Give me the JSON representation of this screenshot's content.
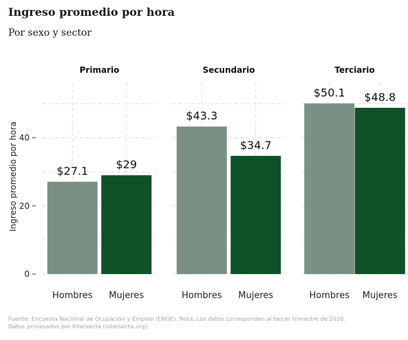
{
  "header": {
    "title": "Ingreso promedio por hora",
    "subtitle": "Por sexo y sector"
  },
  "caption": {
    "line1": "Fuente: Encuesta Nacional de Ocupación y Empleo (ENOE). Nota: Los datos corresponden al tercer trimestre de 2020.",
    "line2": "Datos procesados por Intersecta (intersecta.org)."
  },
  "colors": {
    "hombres": "#7b9084",
    "mujeres": "#0f5127",
    "grid": "#dcdcdc"
  },
  "chart_data": {
    "type": "bar",
    "ylabel": "Ingreso promedio por hora",
    "ylim": [
      0,
      52
    ],
    "yticks": [
      0,
      20,
      40
    ],
    "grid": true,
    "facets": [
      {
        "name": "Primario",
        "categories": [
          "Hombres",
          "Mujeres"
        ],
        "values": [
          27.1,
          29
        ],
        "labels": [
          "$27.1",
          "$29"
        ]
      },
      {
        "name": "Secundario",
        "categories": [
          "Hombres",
          "Mujeres"
        ],
        "values": [
          43.3,
          34.7
        ],
        "labels": [
          "$43.3",
          "$34.7"
        ]
      },
      {
        "name": "Terciario",
        "categories": [
          "Hombres",
          "Mujeres"
        ],
        "values": [
          50.1,
          48.8
        ],
        "labels": [
          "$50.1",
          "$48.8"
        ]
      }
    ]
  }
}
